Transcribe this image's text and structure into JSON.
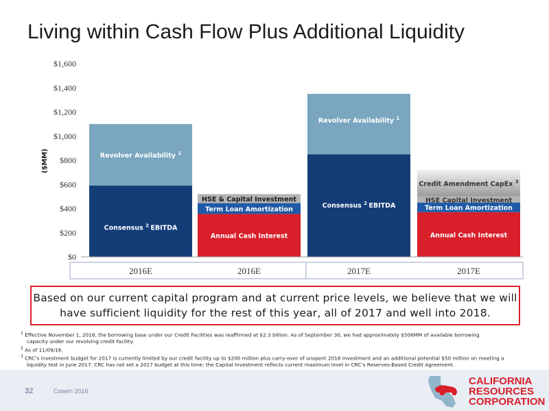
{
  "title": "Living within Cash Flow Plus Additional Liquidity",
  "colors": {
    "navy": "#143d78",
    "light_blue": "#7aa6bf",
    "mid_blue": "#1f5aa6",
    "red": "#d81f2a",
    "gray": "#b3b3b3",
    "dark_gray": "#8c8c8c",
    "accent_red": "#d81f2a"
  },
  "chart_data": {
    "type": "bar",
    "ylabel": "($MM)",
    "ylim": [
      0,
      1600
    ],
    "y_ticks": [
      "$0",
      "$200",
      "$400",
      "$600",
      "$800",
      "$1,000",
      "$1,200",
      "$1,400",
      "$1,600"
    ],
    "categories": [
      "2016E",
      "2016E",
      "2017E",
      "2017E"
    ],
    "stacks": [
      {
        "category": "2016E",
        "segments": [
          {
            "name": "Consensus EBITDA",
            "label": "Consensus",
            "sup": "2",
            "label2": "EBITDA",
            "value": 590
          },
          {
            "name": "Revolver Availability",
            "label": "Revolver Availability",
            "sup": "1",
            "value": 510
          }
        ]
      },
      {
        "category": "2016E",
        "segments": [
          {
            "name": "Annual Cash Interest",
            "label": "Annual Cash Interest",
            "value": 355
          },
          {
            "name": "Term Loan Amortization",
            "label": "Term Loan Amortization",
            "value": 90
          },
          {
            "name": "HSE & Capital Investment",
            "label": "HSE & Capital Investment",
            "value": 75
          }
        ]
      },
      {
        "category": "2017E",
        "segments": [
          {
            "name": "Consensus EBITDA",
            "label": "Consensus",
            "sup": "2",
            "label2": "EBITDA",
            "value": 850
          },
          {
            "name": "Revolver Availability",
            "label": "Revolver Availability",
            "sup": "1",
            "value": 500
          }
        ]
      },
      {
        "category": "2017E",
        "segments": [
          {
            "name": "Annual Cash Interest",
            "label": "Annual Cash Interest",
            "value": 370
          },
          {
            "name": "Term Loan Amortization",
            "label": "Term Loan Amortization",
            "value": 80
          },
          {
            "name": "HSE Capital Investment",
            "label": "HSE Capital Investment",
            "value": 50
          },
          {
            "name": "Credit Amendment CapEx",
            "label": "Credit Amendment CapEx",
            "sup": "3",
            "value": 220
          }
        ]
      }
    ]
  },
  "callout": "Based on our current capital program and at current price levels, we believe that we will have sufficient liquidity for the rest of this year, all of 2017 and well into 2018.",
  "footnotes": {
    "fn1_num": "1",
    "fn1_line1": "Effective November 1, 2016, the borrowing base under our Credit Facilities was reaffirmed at $2.3 billion. As of September 30, we had approximately $506MM of available borrowing",
    "fn1_line2": "capacity under our revolving credit facility.",
    "fn2_num": "2",
    "fn2": "As of 11/09/16.",
    "fn3_num": "3",
    "fn3_line1": "CRC’s investment budget for 2017 is currently limited by our credit facility up to $200 million plus carry-over of unspent 2016 investment and an additional potential $50 million on meeting a",
    "fn3_line2": "liquidity test in June 2017. CRC has not set a 2017 budget at this time; the Capital Investment reflects current maximum level in CRC’s Reserves-Based Credit Agreement."
  },
  "footer": {
    "page_number": "32",
    "source": "Cowen 2016",
    "logo_line1": "CALIFORNIA",
    "logo_line2": "RESOURCES",
    "logo_line3": "CORPORATION"
  }
}
